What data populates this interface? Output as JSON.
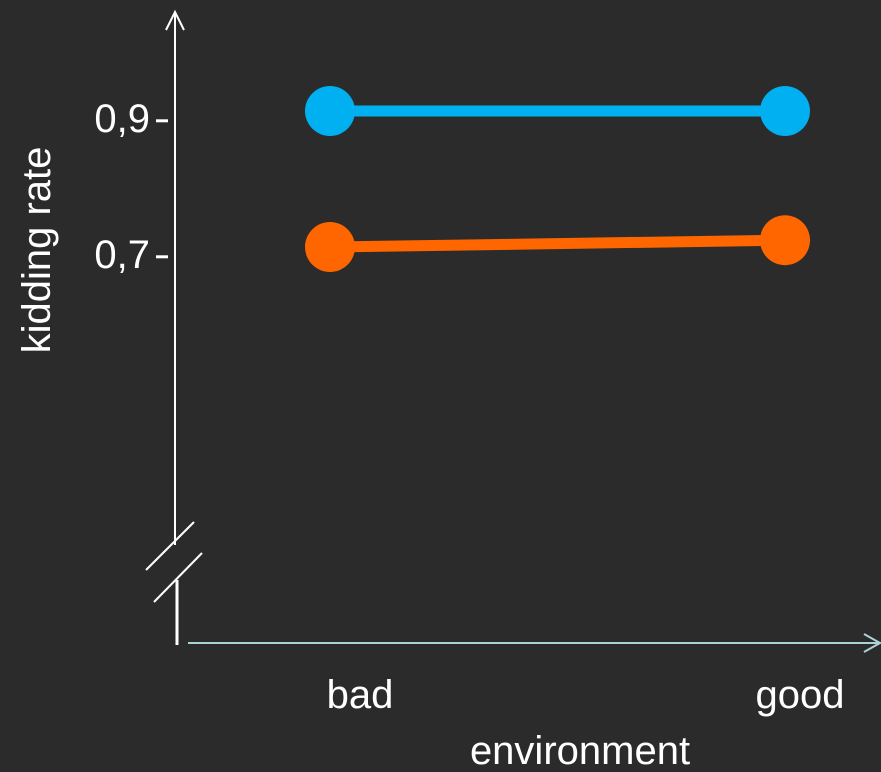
{
  "chart_data": {
    "type": "line",
    "xlabel": "environment",
    "ylabel": "kidding rate",
    "categories": [
      "bad",
      "good"
    ],
    "yticks": [
      "0,7",
      "0,9"
    ],
    "ylim": [
      0.3,
      1.0
    ],
    "series": [
      {
        "color": "#00b0f0",
        "values": [
          0.91,
          0.91
        ]
      },
      {
        "color": "#ff6600",
        "values": [
          0.71,
          0.72
        ]
      }
    ],
    "grid": false,
    "axis_break": true
  }
}
